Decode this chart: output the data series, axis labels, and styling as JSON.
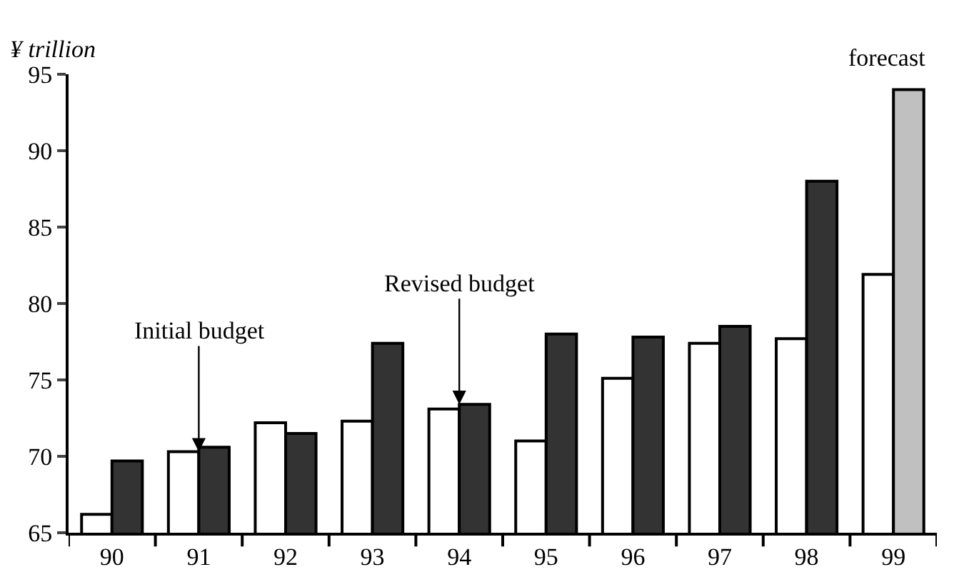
{
  "chart_data": {
    "type": "bar",
    "ylabel": "¥ trillion",
    "categories": [
      "90",
      "91",
      "92",
      "93",
      "94",
      "95",
      "96",
      "97",
      "98",
      "99"
    ],
    "series": [
      {
        "color": "#ffffff",
        "values": [
          66.2,
          70.3,
          72.2,
          72.3,
          73.1,
          71.0,
          75.1,
          77.4,
          77.7,
          81.9
        ]
      },
      {
        "color": "#333333",
        "colors": [
          "#333333",
          "#333333",
          "#333333",
          "#333333",
          "#333333",
          "#333333",
          "#333333",
          "#333333",
          "#333333",
          "#c0c0c0"
        ],
        "values": [
          69.7,
          70.6,
          71.5,
          77.4,
          73.4,
          78.0,
          77.8,
          78.5,
          88.0,
          94.0
        ]
      }
    ],
    "ylim": [
      65,
      95
    ],
    "yticks": [
      65,
      70,
      75,
      80,
      85,
      90,
      95
    ],
    "legend": false,
    "annotations": [
      {
        "text": "Initial budget",
        "x": "91",
        "y": 70.3
      },
      {
        "text": "Revised budget",
        "x": "94",
        "y": 73.4
      },
      "forecast"
    ]
  }
}
